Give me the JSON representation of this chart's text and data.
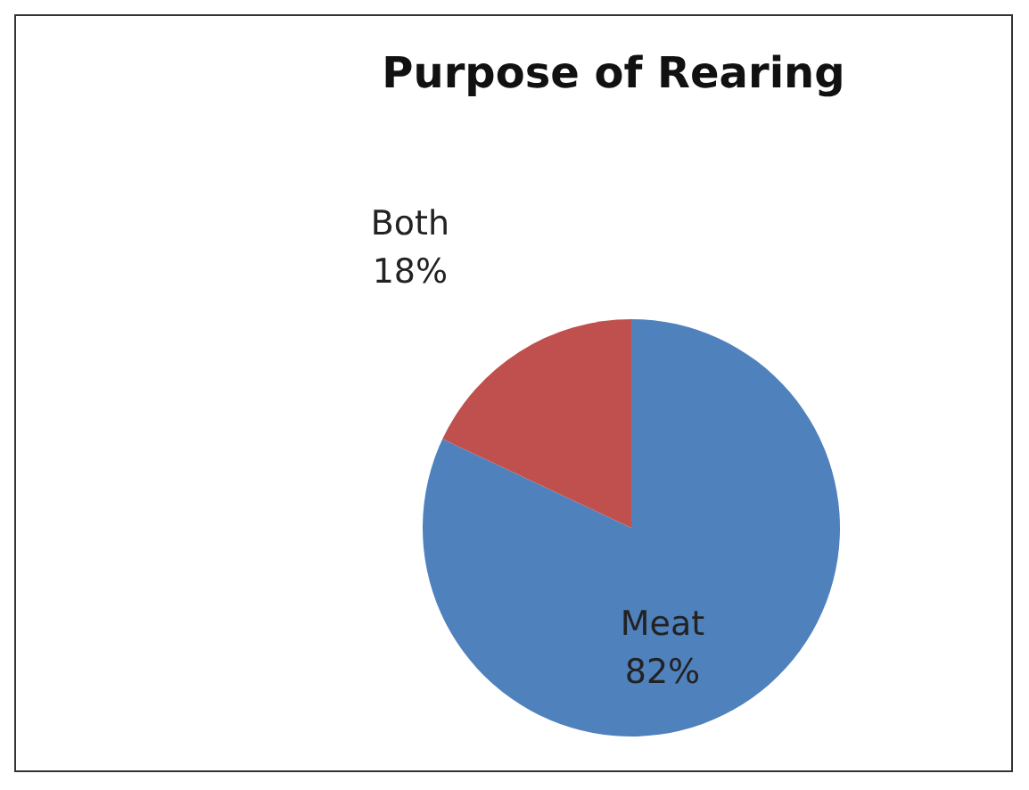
{
  "chart_data": {
    "type": "pie",
    "title": "Purpose of Rearing",
    "categories": [
      "Meat",
      "Both"
    ],
    "values": [
      82,
      18
    ],
    "value_labels": [
      "82%",
      "18%"
    ],
    "colors": [
      "#4f81bd",
      "#c0504d"
    ],
    "legend": false
  }
}
